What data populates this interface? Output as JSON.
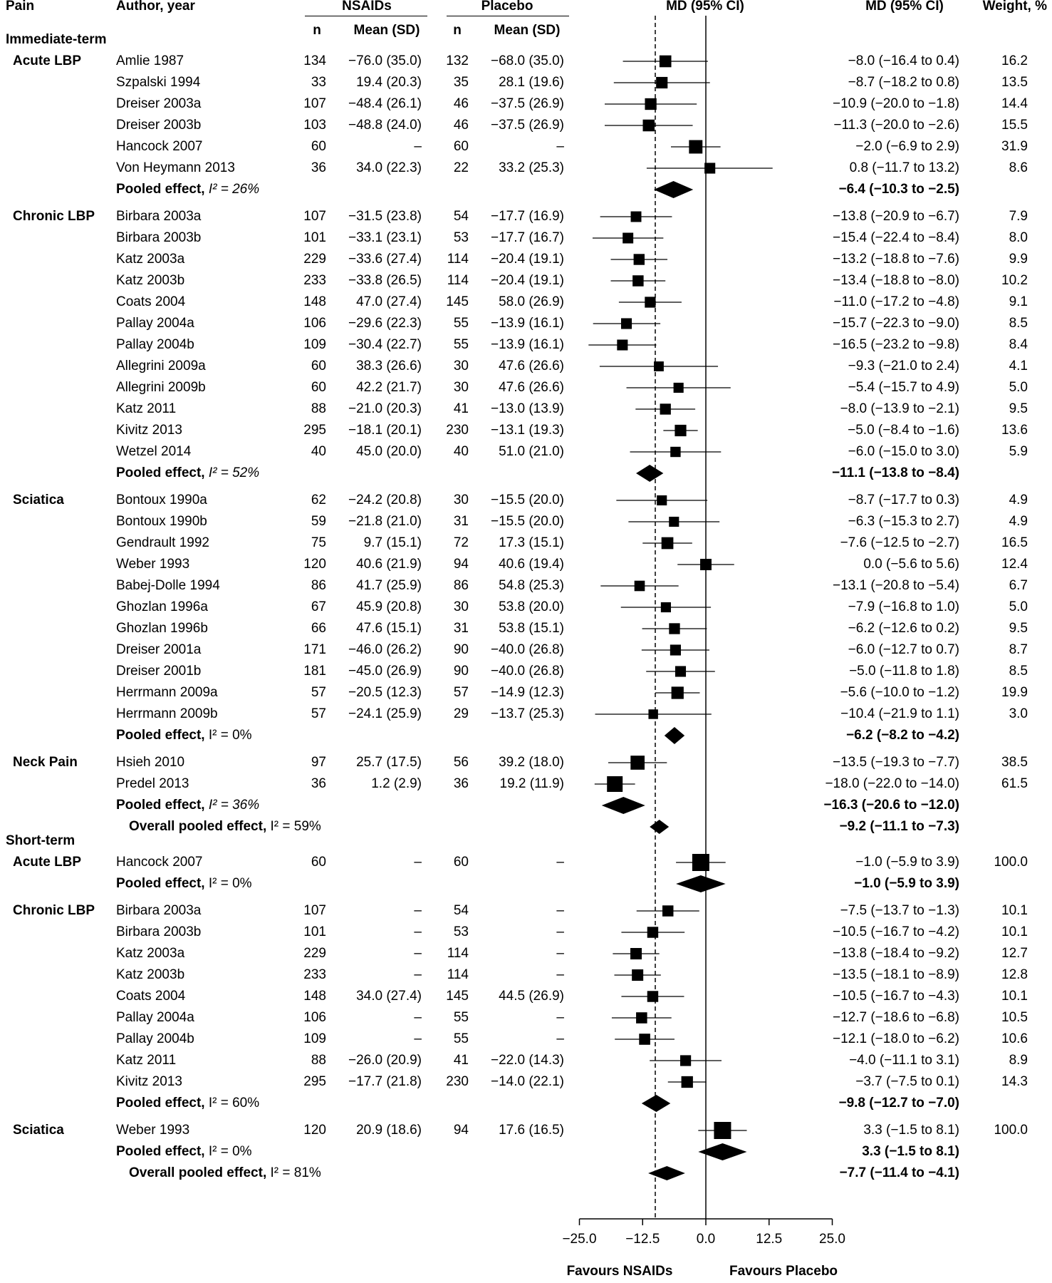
{
  "headers": {
    "pain": "Pain",
    "author": "Author, year",
    "nsaids": "NSAIDs",
    "placebo": "Placebo",
    "n": "n",
    "mean_sd": "Mean (SD)",
    "md_ci_plot": "MD (95% CI)",
    "md_ci_text": "MD (95% CI)",
    "weight": "Weight, %"
  },
  "sections": [
    {
      "type": "section",
      "label": "Immediate-term"
    },
    {
      "type": "study",
      "group": "Acute LBP",
      "author": "Amlie 1987",
      "n1": "134",
      "mean1": "−76.0 (35.0)",
      "n2": "132",
      "mean2": "−68.0 (35.0)",
      "ci_text": "−8.0 (−16.4 to 0.4)",
      "weight": "16.2",
      "md": -8.0,
      "lo": -16.4,
      "hi": 0.4,
      "w": 16.2
    },
    {
      "type": "study",
      "author": "Szpalski 1994",
      "n1": "33",
      "mean1": "19.4 (20.3)",
      "n2": "35",
      "mean2": "28.1 (19.6)",
      "ci_text": "−8.7 (−18.2 to 0.8)",
      "weight": "13.5",
      "md": -8.7,
      "lo": -18.2,
      "hi": 0.8,
      "w": 13.5
    },
    {
      "type": "study",
      "author": "Dreiser 2003a",
      "n1": "107",
      "mean1": "−48.4 (26.1)",
      "n2": "46",
      "mean2": "−37.5 (26.9)",
      "ci_text": "−10.9 (−20.0 to −1.8)",
      "weight": "14.4",
      "md": -10.9,
      "lo": -20.0,
      "hi": -1.8,
      "w": 14.4
    },
    {
      "type": "study",
      "author": "Dreiser 2003b",
      "n1": "103",
      "mean1": "−48.8 (24.0)",
      "n2": "46",
      "mean2": "−37.5 (26.9)",
      "ci_text": "−11.3 (−20.0 to −2.6)",
      "weight": "15.5",
      "md": -11.3,
      "lo": -20.0,
      "hi": -2.6,
      "w": 15.5
    },
    {
      "type": "study",
      "author": "Hancock 2007",
      "n1": "60",
      "mean1": "–",
      "n2": "60",
      "mean2": "–",
      "ci_text": "−2.0 (−6.9 to 2.9)",
      "weight": "31.9",
      "md": -2.0,
      "lo": -6.9,
      "hi": 2.9,
      "w": 31.9
    },
    {
      "type": "study",
      "author": "Von Heymann 2013",
      "n1": "36",
      "mean1": "34.0 (22.3)",
      "n2": "22",
      "mean2": "33.2 (25.3)",
      "ci_text": "0.8 (−11.7 to 13.2)",
      "weight": "8.6",
      "md": 0.8,
      "lo": -11.7,
      "hi": 13.2,
      "w": 8.6
    },
    {
      "type": "pooled",
      "label": "Pooled effect, ",
      "i2": "I² = 26%",
      "i2_italic": true,
      "ci_text": "−6.4 (−10.3 to −2.5)",
      "md": -6.4,
      "lo": -10.3,
      "hi": -2.5
    },
    {
      "type": "study",
      "group": "Chronic LBP",
      "author": "Birbara 2003a",
      "n1": "107",
      "mean1": "−31.5 (23.8)",
      "n2": "54",
      "mean2": "−17.7 (16.9)",
      "ci_text": "−13.8 (−20.9 to −6.7)",
      "weight": "7.9",
      "md": -13.8,
      "lo": -20.9,
      "hi": -6.7,
      "w": 7.9
    },
    {
      "type": "study",
      "author": "Birbara 2003b",
      "n1": "101",
      "mean1": "−33.1 (23.1)",
      "n2": "53",
      "mean2": "−17.7 (16.7)",
      "ci_text": "−15.4 (−22.4 to −8.4)",
      "weight": "8.0",
      "md": -15.4,
      "lo": -22.4,
      "hi": -8.4,
      "w": 8.0
    },
    {
      "type": "study",
      "author": "Katz 2003a",
      "n1": "229",
      "mean1": "−33.6 (27.4)",
      "n2": "114",
      "mean2": "−20.4 (19.1)",
      "ci_text": "−13.2 (−18.8 to −7.6)",
      "weight": "9.9",
      "md": -13.2,
      "lo": -18.8,
      "hi": -7.6,
      "w": 9.9
    },
    {
      "type": "study",
      "author": "Katz 2003b",
      "n1": "233",
      "mean1": "−33.8 (26.5)",
      "n2": "114",
      "mean2": "−20.4 (19.1)",
      "ci_text": "−13.4 (−18.8 to −8.0)",
      "weight": "10.2",
      "md": -13.4,
      "lo": -18.8,
      "hi": -8.0,
      "w": 10.2
    },
    {
      "type": "study",
      "author": "Coats 2004",
      "n1": "148",
      "mean1": "47.0 (27.4)",
      "n2": "145",
      "mean2": "58.0 (26.9)",
      "ci_text": "−11.0 (−17.2 to −4.8)",
      "weight": "9.1",
      "md": -11.0,
      "lo": -17.2,
      "hi": -4.8,
      "w": 9.1
    },
    {
      "type": "study",
      "author": "Pallay 2004a",
      "n1": "106",
      "mean1": "−29.6 (22.3)",
      "n2": "55",
      "mean2": "−13.9 (16.1)",
      "ci_text": "−15.7 (−22.3 to −9.0)",
      "weight": "8.5",
      "md": -15.7,
      "lo": -22.3,
      "hi": -9.0,
      "w": 8.5
    },
    {
      "type": "study",
      "author": "Pallay 2004b",
      "n1": "109",
      "mean1": "−30.4 (22.7)",
      "n2": "55",
      "mean2": "−13.9 (16.1)",
      "ci_text": "−16.5 (−23.2 to −9.8)",
      "weight": "8.4",
      "md": -16.5,
      "lo": -23.2,
      "hi": -9.8,
      "w": 8.4
    },
    {
      "type": "study",
      "author": "Allegrini 2009a",
      "n1": "60",
      "mean1": "38.3 (26.6)",
      "n2": "30",
      "mean2": "47.6 (26.6)",
      "ci_text": "−9.3 (−21.0 to 2.4)",
      "weight": "4.1",
      "md": -9.3,
      "lo": -21.0,
      "hi": 2.4,
      "w": 4.1
    },
    {
      "type": "study",
      "author": "Allegrini 2009b",
      "n1": "60",
      "mean1": "42.2 (21.7)",
      "n2": "30",
      "mean2": "47.6 (26.6)",
      "ci_text": "−5.4 (−15.7 to 4.9)",
      "weight": "5.0",
      "md": -5.4,
      "lo": -15.7,
      "hi": 4.9,
      "w": 5.0
    },
    {
      "type": "study",
      "author": "Katz 2011",
      "n1": "88",
      "mean1": "−21.0 (20.3)",
      "n2": "41",
      "mean2": "−13.0 (13.9)",
      "ci_text": "−8.0 (−13.9 to −2.1)",
      "weight": "9.5",
      "md": -8.0,
      "lo": -13.9,
      "hi": -2.1,
      "w": 9.5
    },
    {
      "type": "study",
      "author": "Kivitz 2013",
      "n1": "295",
      "mean1": "−18.1 (20.1)",
      "n2": "230",
      "mean2": "−13.1 (19.3)",
      "ci_text": "−5.0 (−8.4 to −1.6)",
      "weight": "13.6",
      "md": -5.0,
      "lo": -8.4,
      "hi": -1.6,
      "w": 13.6
    },
    {
      "type": "study",
      "author": "Wetzel 2014",
      "n1": "40",
      "mean1": "45.0 (20.0)",
      "n2": "40",
      "mean2": "51.0 (21.0)",
      "ci_text": "−6.0 (−15.0 to 3.0)",
      "weight": "5.9",
      "md": -6.0,
      "lo": -15.0,
      "hi": 3.0,
      "w": 5.9
    },
    {
      "type": "pooled",
      "label": "Pooled effect, ",
      "i2": "I² = 52%",
      "i2_italic": true,
      "ci_text": "−11.1 (−13.8 to −8.4)",
      "md": -11.1,
      "lo": -13.8,
      "hi": -8.4
    },
    {
      "type": "study",
      "group": "Sciatica",
      "author": "Bontoux 1990a",
      "n1": "62",
      "mean1": "−24.2 (20.8)",
      "n2": "30",
      "mean2": "−15.5 (20.0)",
      "ci_text": "−8.7 (−17.7 to 0.3)",
      "weight": "4.9",
      "md": -8.7,
      "lo": -17.7,
      "hi": 0.3,
      "w": 4.9
    },
    {
      "type": "study",
      "author": "Bontoux 1990b",
      "n1": "59",
      "mean1": "−21.8 (21.0)",
      "n2": "31",
      "mean2": "−15.5 (20.0)",
      "ci_text": "−6.3 (−15.3 to 2.7)",
      "weight": "4.9",
      "md": -6.3,
      "lo": -15.3,
      "hi": 2.7,
      "w": 4.9
    },
    {
      "type": "study",
      "author": "Gendrault 1992",
      "n1": "75",
      "mean1": "9.7 (15.1)",
      "n2": "72",
      "mean2": "17.3 (15.1)",
      "ci_text": "−7.6 (−12.5 to −2.7)",
      "weight": "16.5",
      "md": -7.6,
      "lo": -12.5,
      "hi": -2.7,
      "w": 16.5
    },
    {
      "type": "study",
      "author": "Weber 1993",
      "n1": "120",
      "mean1": "40.6 (21.9)",
      "n2": "94",
      "mean2": "40.6 (19.4)",
      "ci_text": "0.0 (−5.6 to 5.6)",
      "weight": "12.4",
      "md": 0.0,
      "lo": -5.6,
      "hi": 5.6,
      "w": 12.4
    },
    {
      "type": "study",
      "author": "Babej-Dolle 1994",
      "n1": "86",
      "mean1": "41.7 (25.9)",
      "n2": "86",
      "mean2": "54.8 (25.3)",
      "ci_text": "−13.1 (−20.8 to −5.4)",
      "weight": "6.7",
      "md": -13.1,
      "lo": -20.8,
      "hi": -5.4,
      "w": 6.7
    },
    {
      "type": "study",
      "author": "Ghozlan 1996a",
      "n1": "67",
      "mean1": "45.9 (20.8)",
      "n2": "30",
      "mean2": "53.8 (20.0)",
      "ci_text": "−7.9 (−16.8 to 1.0)",
      "weight": "5.0",
      "md": -7.9,
      "lo": -16.8,
      "hi": 1.0,
      "w": 5.0
    },
    {
      "type": "study",
      "author": "Ghozlan 1996b",
      "n1": "66",
      "mean1": "47.6 (15.1)",
      "n2": "31",
      "mean2": "53.8 (15.1)",
      "ci_text": "−6.2 (−12.6 to 0.2)",
      "weight": "9.5",
      "md": -6.2,
      "lo": -12.6,
      "hi": 0.2,
      "w": 9.5
    },
    {
      "type": "study",
      "author": "Dreiser 2001a",
      "n1": "171",
      "mean1": "−46.0 (26.2)",
      "n2": "90",
      "mean2": "−40.0 (26.8)",
      "ci_text": "−6.0 (−12.7 to 0.7)",
      "weight": "8.7",
      "md": -6.0,
      "lo": -12.7,
      "hi": 0.7,
      "w": 8.7
    },
    {
      "type": "study",
      "author": "Dreiser 2001b",
      "n1": "181",
      "mean1": "−45.0 (26.9)",
      "n2": "90",
      "mean2": "−40.0 (26.8)",
      "ci_text": "−5.0 (−11.8 to 1.8)",
      "weight": "8.5",
      "md": -5.0,
      "lo": -11.8,
      "hi": 1.8,
      "w": 8.5
    },
    {
      "type": "study",
      "author": "Herrmann 2009a",
      "n1": "57",
      "mean1": "−20.5 (12.3)",
      "n2": "57",
      "mean2": "−14.9 (12.3)",
      "ci_text": "−5.6 (−10.0 to −1.2)",
      "weight": "19.9",
      "md": -5.6,
      "lo": -10.0,
      "hi": -1.2,
      "w": 19.9
    },
    {
      "type": "study",
      "author": "Herrmann 2009b",
      "n1": "57",
      "mean1": "−24.1 (25.9)",
      "n2": "29",
      "mean2": "−13.7 (25.3)",
      "ci_text": "−10.4 (−21.9 to 1.1)",
      "weight": "3.0",
      "md": -10.4,
      "lo": -21.9,
      "hi": 1.1,
      "w": 3.0
    },
    {
      "type": "pooled",
      "label": "Pooled effect, ",
      "i2": "I² = 0%",
      "i2_italic": false,
      "ci_text": "−6.2 (−8.2 to −4.2)",
      "md": -6.2,
      "lo": -8.2,
      "hi": -4.2
    },
    {
      "type": "study",
      "group": "Neck Pain",
      "author": "Hsieh 2010",
      "n1": "97",
      "mean1": "25.7 (17.5)",
      "n2": "56",
      "mean2": "39.2 (18.0)",
      "ci_text": "−13.5 (−19.3 to −7.7)",
      "weight": "38.5",
      "md": -13.5,
      "lo": -19.3,
      "hi": -7.7,
      "w": 38.5
    },
    {
      "type": "study",
      "author": "Predel 2013",
      "n1": "36",
      "mean1": "1.2 (2.9)",
      "n2": "36",
      "mean2": "19.2 (11.9)",
      "ci_text": "−18.0 (−22.0 to −14.0)",
      "weight": "61.5",
      "md": -18.0,
      "lo": -22.0,
      "hi": -14.0,
      "w": 61.5
    },
    {
      "type": "pooled",
      "label": "Pooled effect, ",
      "i2": "I² = 36%",
      "i2_italic": true,
      "ci_text": "−16.3 (−20.6 to −12.0)",
      "md": -16.3,
      "lo": -20.6,
      "hi": -12.0
    },
    {
      "type": "overall",
      "label": "Overall pooled effect, ",
      "i2": "I² = 59%",
      "i2_italic": false,
      "ci_text": "−9.2 (−11.1 to −7.3)",
      "md": -9.2,
      "lo": -11.1,
      "hi": -7.3
    },
    {
      "type": "section",
      "label": "Short-term"
    },
    {
      "type": "study",
      "group": "Acute LBP",
      "author": "Hancock 2007",
      "n1": "60",
      "mean1": "–",
      "n2": "60",
      "mean2": "–",
      "ci_text": "−1.0 (−5.9 to 3.9)",
      "weight": "100.0",
      "md": -1.0,
      "lo": -5.9,
      "hi": 3.9,
      "w": 100.0
    },
    {
      "type": "pooled",
      "label": "Pooled effect, ",
      "i2": "I² = 0%",
      "i2_italic": false,
      "ci_text": "−1.0 (−5.9 to 3.9)",
      "md": -1.0,
      "lo": -5.9,
      "hi": 3.9
    },
    {
      "type": "study",
      "group": "Chronic LBP",
      "author": "Birbara 2003a",
      "n1": "107",
      "mean1": "–",
      "n2": "54",
      "mean2": "–",
      "ci_text": "−7.5 (−13.7 to −1.3)",
      "weight": "10.1",
      "md": -7.5,
      "lo": -13.7,
      "hi": -1.3,
      "w": 10.1
    },
    {
      "type": "study",
      "author": "Birbara 2003b",
      "n1": "101",
      "mean1": "–",
      "n2": "53",
      "mean2": "–",
      "ci_text": "−10.5 (−16.7 to −4.2)",
      "weight": "10.1",
      "md": -10.5,
      "lo": -16.7,
      "hi": -4.2,
      "w": 10.1
    },
    {
      "type": "study",
      "author": "Katz 2003a",
      "n1": "229",
      "mean1": "–",
      "n2": "114",
      "mean2": "–",
      "ci_text": "−13.8 (−18.4 to −9.2)",
      "weight": "12.7",
      "md": -13.8,
      "lo": -18.4,
      "hi": -9.2,
      "w": 12.7
    },
    {
      "type": "study",
      "author": "Katz 2003b",
      "n1": "233",
      "mean1": "–",
      "n2": "114",
      "mean2": "–",
      "ci_text": "−13.5 (−18.1 to −8.9)",
      "weight": "12.8",
      "md": -13.5,
      "lo": -18.1,
      "hi": -8.9,
      "w": 12.8
    },
    {
      "type": "study",
      "author": "Coats 2004",
      "n1": "148",
      "mean1": "34.0 (27.4)",
      "n2": "145",
      "mean2": "44.5 (26.9)",
      "ci_text": "−10.5 (−16.7 to −4.3)",
      "weight": "10.1",
      "md": -10.5,
      "lo": -16.7,
      "hi": -4.3,
      "w": 10.1
    },
    {
      "type": "study",
      "author": "Pallay 2004a",
      "n1": "106",
      "mean1": "–",
      "n2": "55",
      "mean2": "–",
      "ci_text": "−12.7 (−18.6 to −6.8)",
      "weight": "10.5",
      "md": -12.7,
      "lo": -18.6,
      "hi": -6.8,
      "w": 10.5
    },
    {
      "type": "study",
      "author": "Pallay 2004b",
      "n1": "109",
      "mean1": "–",
      "n2": "55",
      "mean2": "–",
      "ci_text": "−12.1 (−18.0 to −6.2)",
      "weight": "10.6",
      "md": -12.1,
      "lo": -18.0,
      "hi": -6.2,
      "w": 10.6
    },
    {
      "type": "study",
      "author": "Katz 2011",
      "n1": "88",
      "mean1": "−26.0 (20.9)",
      "n2": "41",
      "mean2": "−22.0 (14.3)",
      "ci_text": "−4.0 (−11.1 to 3.1)",
      "weight": "8.9",
      "md": -4.0,
      "lo": -11.1,
      "hi": 3.1,
      "w": 8.9
    },
    {
      "type": "study",
      "author": "Kivitz 2013",
      "n1": "295",
      "mean1": "−17.7 (21.8)",
      "n2": "230",
      "mean2": "−14.0 (22.1)",
      "ci_text": "−3.7 (−7.5 to 0.1)",
      "weight": "14.3",
      "md": -3.7,
      "lo": -7.5,
      "hi": 0.1,
      "w": 14.3
    },
    {
      "type": "pooled",
      "label": "Pooled effect, ",
      "i2": "I² = 60%",
      "i2_italic": false,
      "ci_text": "−9.8 (−12.7 to −7.0)",
      "md": -9.8,
      "lo": -12.7,
      "hi": -7.0
    },
    {
      "type": "study",
      "group": "Sciatica",
      "author": "Weber 1993",
      "n1": "120",
      "mean1": "20.9 (18.6)",
      "n2": "94",
      "mean2": "17.6 (16.5)",
      "ci_text": "3.3 (−1.5 to 8.1)",
      "weight": "100.0",
      "md": 3.3,
      "lo": -1.5,
      "hi": 8.1,
      "w": 100.0
    },
    {
      "type": "pooled",
      "label": "Pooled effect, ",
      "i2": "I² = 0%",
      "i2_italic": false,
      "ci_text": "3.3 (−1.5 to 8.1)",
      "md": 3.3,
      "lo": -1.5,
      "hi": 8.1
    },
    {
      "type": "overall",
      "label": "Overall pooled effect, ",
      "i2": "I² = 81%",
      "i2_italic": false,
      "ci_text": "−7.7 (−11.4 to −4.1)",
      "md": -7.7,
      "lo": -11.4,
      "hi": -4.1
    }
  ],
  "chart_data": {
    "type": "forest",
    "xlim": [
      -30,
      30
    ],
    "xticks": [
      -25.0,
      -12.5,
      0.0,
      12.5,
      25.0
    ],
    "xtick_labels": [
      "−25.0",
      "−12.5",
      "0.0",
      "12.5",
      "25.0"
    ],
    "null_line": 0,
    "reference_line": -10,
    "favours_left": "Favours NSAIDs",
    "favours_right": "Favours Placebo"
  }
}
